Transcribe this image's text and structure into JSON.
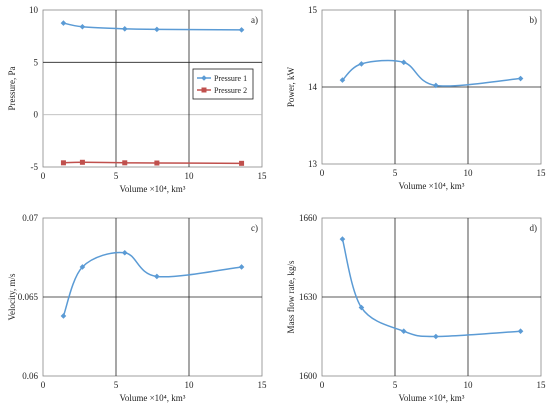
{
  "chart_data": [
    {
      "id": "a",
      "type": "line",
      "panel_label": "a)",
      "xlabel": "Volume ×10⁴, km³",
      "ylabel": "Pressure, Pa",
      "xlim": [
        0,
        15
      ],
      "ylim": [
        -5,
        10
      ],
      "xticks": [
        0,
        5,
        10,
        15
      ],
      "yticks": [
        -5,
        0,
        5,
        10
      ],
      "grid": true,
      "legend_position": "right",
      "series": [
        {
          "name": "Pressure 1",
          "color": "#5B9BD5",
          "marker": "diamond",
          "x": [
            1.4,
            2.7,
            5.6,
            7.8,
            13.6
          ],
          "y": [
            8.75,
            8.4,
            8.2,
            8.15,
            8.1
          ]
        },
        {
          "name": "Pressure 2",
          "color": "#C0504D",
          "marker": "square",
          "x": [
            1.4,
            2.7,
            5.6,
            7.8,
            13.6
          ],
          "y": [
            -4.6,
            -4.55,
            -4.6,
            -4.62,
            -4.65
          ]
        }
      ]
    },
    {
      "id": "b",
      "type": "line",
      "panel_label": "b)",
      "xlabel": "Volume ×10⁴, km³",
      "ylabel": "Power, kW",
      "xlim": [
        0,
        15
      ],
      "ylim": [
        13,
        15
      ],
      "xticks": [
        0,
        5,
        10,
        15
      ],
      "yticks": [
        13,
        14,
        15
      ],
      "grid": true,
      "series": [
        {
          "color": "#5B9BD5",
          "marker": "diamond",
          "x": [
            1.4,
            2.7,
            5.6,
            7.8,
            13.6
          ],
          "y": [
            14.09,
            14.3,
            14.32,
            14.02,
            14.11
          ]
        }
      ]
    },
    {
      "id": "c",
      "type": "line",
      "panel_label": "c)",
      "xlabel": "Volume ×10⁴, km³",
      "ylabel": "Velocity, m/s",
      "xlim": [
        0,
        15
      ],
      "ylim": [
        0.06,
        0.07
      ],
      "xticks": [
        0,
        5,
        10,
        15
      ],
      "yticks": [
        0.06,
        0.065,
        0.07
      ],
      "ytick_labels": [
        "0.06",
        "0.065",
        "0.07"
      ],
      "grid": true,
      "series": [
        {
          "color": "#5B9BD5",
          "marker": "diamond",
          "x": [
            1.4,
            2.7,
            5.6,
            7.8,
            13.6
          ],
          "y": [
            0.0638,
            0.0669,
            0.0678,
            0.0663,
            0.0669
          ]
        }
      ]
    },
    {
      "id": "d",
      "type": "line",
      "panel_label": "d)",
      "xlabel": "Volume ×10⁴, km³",
      "ylabel": "Mass flow rate, kg/s",
      "xlim": [
        0,
        15
      ],
      "ylim": [
        1600,
        1660
      ],
      "xticks": [
        0,
        5,
        10,
        15
      ],
      "yticks": [
        1600,
        1630,
        1660
      ],
      "grid": true,
      "series": [
        {
          "color": "#5B9BD5",
          "marker": "diamond",
          "x": [
            1.4,
            2.7,
            5.6,
            7.8,
            13.6
          ],
          "y": [
            1652,
            1626,
            1617,
            1615,
            1617
          ]
        }
      ]
    }
  ]
}
